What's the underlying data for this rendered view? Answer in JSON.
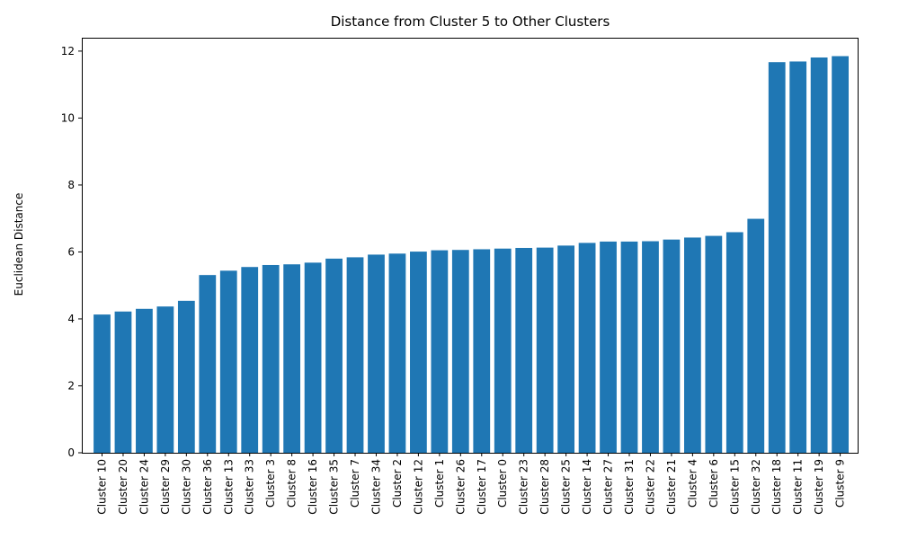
{
  "chart_data": {
    "type": "bar",
    "title": "Distance from Cluster 5 to Other Clusters",
    "xlabel": "",
    "ylabel": "Euclidean Distance",
    "ylim": [
      0,
      12.4
    ],
    "yticks": [
      0,
      2,
      4,
      6,
      8,
      10,
      12
    ],
    "grid": false,
    "bar_color": "#1f77b4",
    "categories": [
      "Cluster 10",
      "Cluster 20",
      "Cluster 24",
      "Cluster 29",
      "Cluster 30",
      "Cluster 36",
      "Cluster 13",
      "Cluster 33",
      "Cluster 3",
      "Cluster 8",
      "Cluster 16",
      "Cluster 35",
      "Cluster 7",
      "Cluster 34",
      "Cluster 2",
      "Cluster 12",
      "Cluster 1",
      "Cluster 26",
      "Cluster 17",
      "Cluster 0",
      "Cluster 23",
      "Cluster 28",
      "Cluster 25",
      "Cluster 14",
      "Cluster 27",
      "Cluster 31",
      "Cluster 22",
      "Cluster 21",
      "Cluster 4",
      "Cluster 6",
      "Cluster 15",
      "Cluster 32",
      "Cluster 18",
      "Cluster 11",
      "Cluster 19",
      "Cluster 9"
    ],
    "values": [
      4.13,
      4.22,
      4.3,
      4.37,
      4.54,
      5.31,
      5.44,
      5.55,
      5.61,
      5.63,
      5.68,
      5.8,
      5.84,
      5.92,
      5.95,
      6.01,
      6.05,
      6.06,
      6.08,
      6.1,
      6.12,
      6.13,
      6.19,
      6.27,
      6.31,
      6.31,
      6.32,
      6.37,
      6.43,
      6.48,
      6.59,
      6.99,
      11.67,
      11.69,
      11.81,
      11.85
    ]
  }
}
